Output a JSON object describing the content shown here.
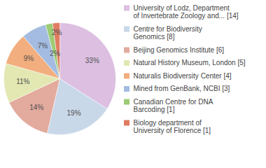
{
  "chart_data": {
    "type": "pie",
    "categories": [
      "University of Lodz, Department\nof Invertebrate Zoology and... [14]",
      "Centre for Biodiversity\nGenomics [8]",
      "Beijing Genomics Institute [6]",
      "Natural History Museum, London [5]",
      "Naturalis Biodiversity Center [4]",
      "Mined from GenBank, NCBI [3]",
      "Canadian Centre for DNA\nBarcoding [1]",
      "Biology department of\nUniversity of Florence [1]"
    ],
    "values": [
      33,
      19,
      14,
      11,
      9,
      7,
      2,
      2
    ],
    "value_labels": [
      "33%",
      "19%",
      "14%",
      "11%",
      "9%",
      "7%",
      "2%",
      "2%"
    ],
    "colors": [
      "#dcbfe1",
      "#c9d8e9",
      "#e3aa9e",
      "#e3e8b3",
      "#f2ae7e",
      "#a4bce1",
      "#9ccb74",
      "#e07c62"
    ],
    "data_labels": true,
    "legend": "right"
  }
}
